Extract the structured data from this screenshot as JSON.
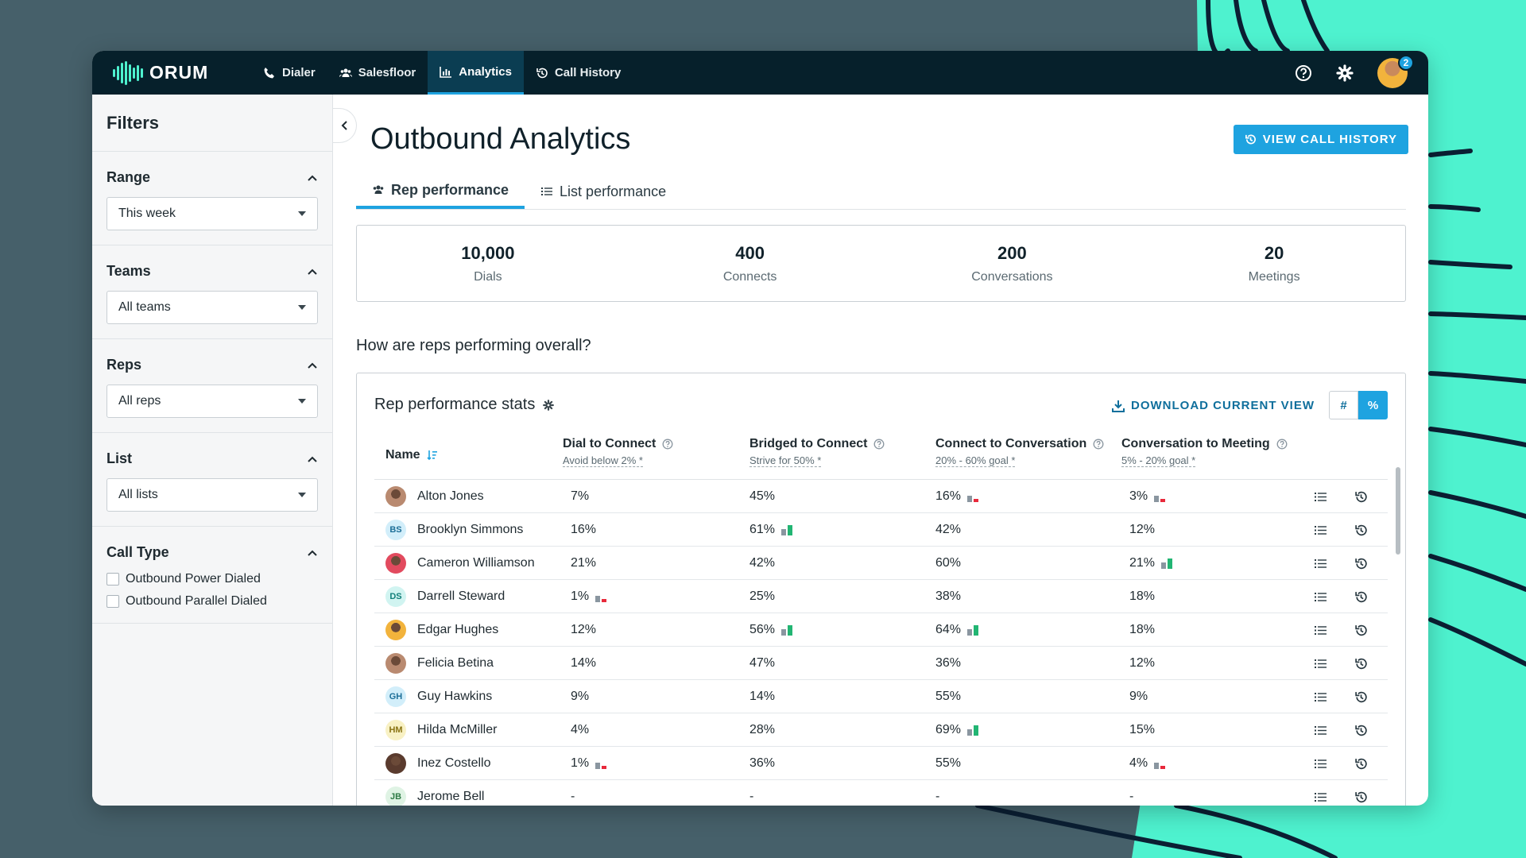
{
  "app": {
    "logo": "ORUM",
    "nav": [
      {
        "label": "Dialer",
        "icon": "phone-icon"
      },
      {
        "label": "Salesfloor",
        "icon": "users-icon"
      },
      {
        "label": "Analytics",
        "icon": "chart-icon",
        "active": true
      },
      {
        "label": "Call History",
        "icon": "history-icon"
      }
    ],
    "notification_count": "2"
  },
  "sidebar": {
    "title": "Filters",
    "range": {
      "label": "Range",
      "value": "This week"
    },
    "teams": {
      "label": "Teams",
      "value": "All teams"
    },
    "reps": {
      "label": "Reps",
      "value": "All reps"
    },
    "list": {
      "label": "List",
      "value": "All lists"
    },
    "call_type": {
      "label": "Call Type",
      "options": [
        "Outbound Power Dialed",
        "Outbound Parallel Dialed"
      ]
    }
  },
  "main": {
    "title": "Outbound Analytics",
    "view_history_label": "VIEW CALL HISTORY",
    "tabs": [
      {
        "label": "Rep performance",
        "active": true
      },
      {
        "label": "List performance",
        "active": false
      }
    ],
    "kpis": [
      {
        "value": "10,000",
        "label": "Dials"
      },
      {
        "value": "400",
        "label": "Connects"
      },
      {
        "value": "200",
        "label": "Conversations"
      },
      {
        "value": "20",
        "label": "Meetings"
      }
    ],
    "question": "How are reps performing overall?"
  },
  "table": {
    "title": "Rep performance stats",
    "download_label": "DOWNLOAD CURRENT VIEW",
    "toggle": [
      "#",
      "%"
    ],
    "columns": {
      "name": "Name",
      "c1": {
        "label": "Dial to Connect",
        "sub": "Avoid below 2% *"
      },
      "c2": {
        "label": "Bridged to Connect",
        "sub": "Strive for 50% *"
      },
      "c3": {
        "label": "Connect to Conversation",
        "sub": "20% - 60% goal *"
      },
      "c4": {
        "label": "Conversation to Meeting",
        "sub": "5% - 20% goal *"
      }
    },
    "rows": [
      {
        "name": "Alton Jones",
        "initials": "",
        "photo": true,
        "c1": "7%",
        "c2": "45%",
        "c3": "16%",
        "c4": "3%",
        "i1": "",
        "i2": "",
        "i3": "low",
        "i4": "low"
      },
      {
        "name": "Brooklyn Simmons",
        "initials": "BS",
        "photo": false,
        "c1": "16%",
        "c2": "61%",
        "c3": "42%",
        "c4": "12%",
        "i1": "",
        "i2": "high",
        "i3": "",
        "i4": ""
      },
      {
        "name": "Cameron Williamson",
        "initials": "",
        "photo": true,
        "c1": "21%",
        "c2": "42%",
        "c3": "60%",
        "c4": "21%",
        "i1": "",
        "i2": "",
        "i3": "",
        "i4": "high"
      },
      {
        "name": "Darrell Steward",
        "initials": "DS",
        "photo": false,
        "c1": "1%",
        "c2": "25%",
        "c3": "38%",
        "c4": "18%",
        "i1": "low",
        "i2": "",
        "i3": "",
        "i4": ""
      },
      {
        "name": "Edgar Hughes",
        "initials": "",
        "photo": true,
        "c1": "12%",
        "c2": "56%",
        "c3": "64%",
        "c4": "18%",
        "i1": "",
        "i2": "high",
        "i3": "high",
        "i4": ""
      },
      {
        "name": "Felicia Betina",
        "initials": "",
        "photo": true,
        "c1": "14%",
        "c2": "47%",
        "c3": "36%",
        "c4": "12%",
        "i1": "",
        "i2": "",
        "i3": "",
        "i4": ""
      },
      {
        "name": "Guy Hawkins",
        "initials": "GH",
        "photo": false,
        "c1": "9%",
        "c2": "14%",
        "c3": "55%",
        "c4": "9%",
        "i1": "",
        "i2": "",
        "i3": "",
        "i4": ""
      },
      {
        "name": "Hilda McMiller",
        "initials": "HM",
        "photo": false,
        "c1": "4%",
        "c2": "28%",
        "c3": "69%",
        "c4": "15%",
        "i1": "",
        "i2": "",
        "i3": "high",
        "i4": ""
      },
      {
        "name": "Inez Costello",
        "initials": "",
        "photo": true,
        "c1": "1%",
        "c2": "36%",
        "c3": "55%",
        "c4": "4%",
        "i1": "low",
        "i2": "",
        "i3": "",
        "i4": "low"
      },
      {
        "name": "Jerome Bell",
        "initials": "JB",
        "photo": false,
        "c1": "-",
        "c2": "-",
        "c3": "-",
        "c4": "-",
        "i1": "",
        "i2": "",
        "i3": "",
        "i4": ""
      }
    ]
  },
  "colors": {
    "accent": "#1ea3e0",
    "navbar": "#06202b",
    "good": "#22b573",
    "bad": "#e8293b",
    "neutral_bar": "#8a96a0",
    "brand_teal": "#4ef2cf"
  }
}
